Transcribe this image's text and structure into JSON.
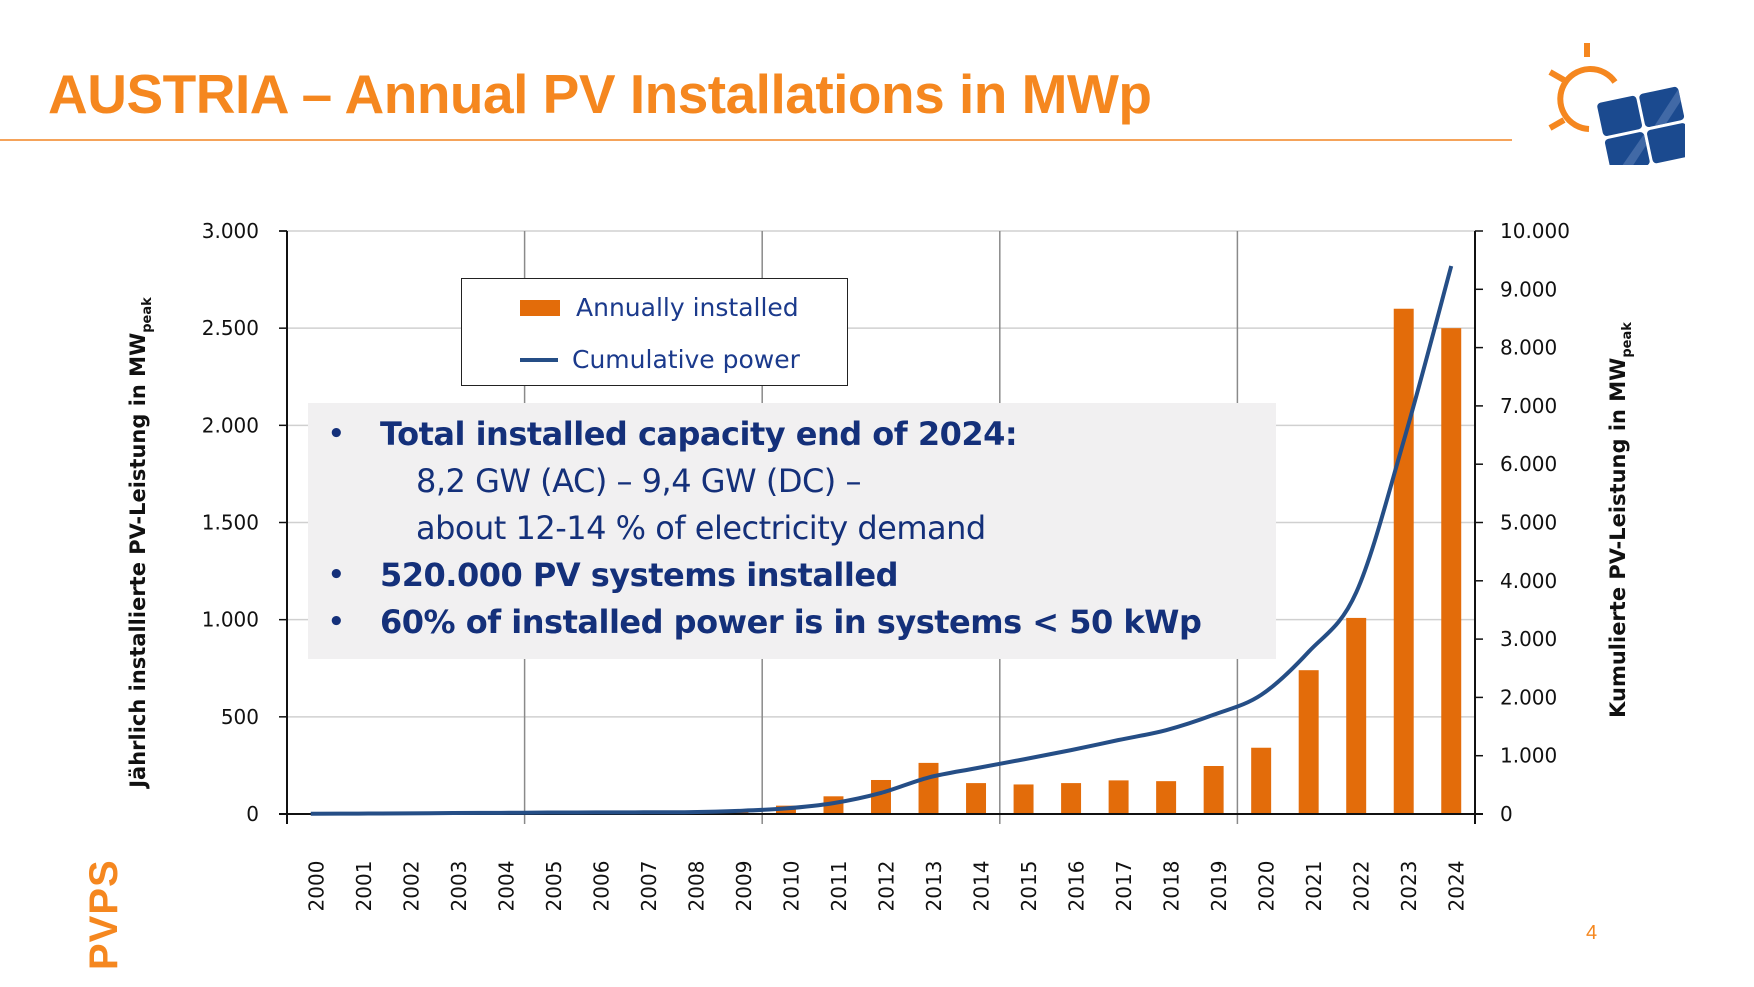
{
  "slide": {
    "title": "AUSTRIA – Annual PV Installations in MWp",
    "footer_brand": "PVPS",
    "page_number": "4",
    "logo_icon": "sun-with-solar-panel-logo"
  },
  "colors": {
    "brand_orange": "#f5871f",
    "bar_orange": "#e36c0a",
    "line_blue": "#254e86",
    "text_blue": "#14307a"
  },
  "legend": {
    "items": [
      {
        "label": "Annually installed",
        "type": "bar"
      },
      {
        "label": "Cumulative power",
        "type": "line"
      }
    ]
  },
  "info_box": {
    "lines": [
      {
        "bullet": "•",
        "text": "Total installed capacity end of 2024:",
        "style": "bold"
      },
      {
        "bullet": "",
        "text": "8,2 GW (AC) – 9,4 GW (DC) –",
        "style": "sub"
      },
      {
        "bullet": "",
        "text": "about 12-14 % of electricity demand",
        "style": "sub"
      },
      {
        "bullet": "•",
        "text": "520.000 PV systems installed",
        "style": "bold"
      },
      {
        "bullet": "•",
        "text": "60% of installed power is in systems < 50 kWp",
        "style": "bold"
      }
    ]
  },
  "chart_data": {
    "type": "bar",
    "title": "",
    "categories": [
      "2000",
      "2001",
      "2002",
      "2003",
      "2004",
      "2005",
      "2006",
      "2007",
      "2008",
      "2009",
      "2010",
      "2011",
      "2012",
      "2013",
      "2014",
      "2015",
      "2016",
      "2017",
      "2018",
      "2019",
      "2020",
      "2021",
      "2022",
      "2023",
      "2024"
    ],
    "series": [
      {
        "name": "Annually installed",
        "type": "bar",
        "axis": "left",
        "values": [
          1,
          2,
          3,
          7,
          4,
          2,
          2,
          2,
          5,
          20,
          43,
          91,
          175,
          263,
          159,
          152,
          159,
          173,
          169,
          247,
          341,
          740,
          1009,
          2600,
          2500
        ]
      },
      {
        "name": "Cumulative power",
        "type": "line",
        "axis": "right",
        "values": [
          5,
          7,
          10,
          17,
          20,
          25,
          27,
          29,
          33,
          54,
          96,
          187,
          362,
          626,
          785,
          937,
          1096,
          1269,
          1438,
          1702,
          2043,
          2783,
          3800,
          6400,
          9400
        ]
      }
    ],
    "ylabel": "Jährlich installierte PV-Leistung in MW",
    "ylabel_subscript": "peak",
    "ylabel_right": "Kumulierte PV-Leistung in MW",
    "ylabel_right_subscript": "peak",
    "ylim": [
      0,
      3000
    ],
    "ylim_right": [
      0,
      10000
    ],
    "yticks": [
      "0",
      "500",
      "1.000",
      "1.500",
      "2.000",
      "2.500",
      "3.000"
    ],
    "yticks_right": [
      "0",
      "1.000",
      "2.000",
      "3.000",
      "4.000",
      "5.000",
      "6.000",
      "7.000",
      "8.000",
      "9.000",
      "10.000"
    ],
    "grid": true,
    "legend_position": "top-left"
  }
}
